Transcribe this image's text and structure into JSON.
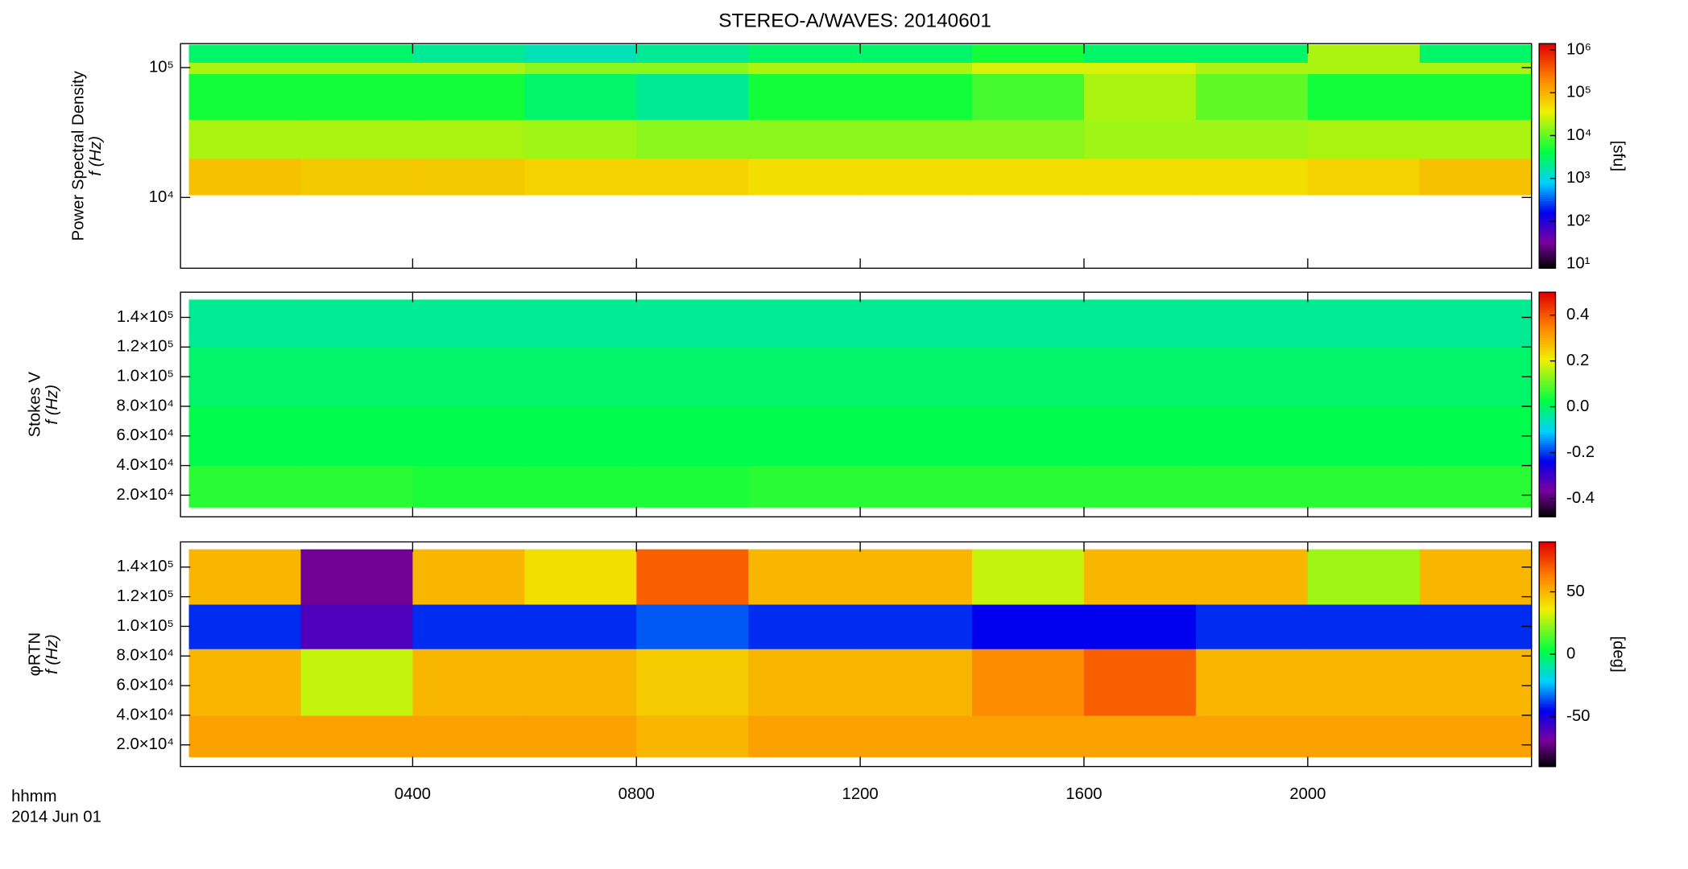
{
  "title": "STEREO-A/WAVES: 20140601",
  "time_label": "hhmm",
  "date_label": "2014 Jun 01",
  "chart_data": [
    {
      "type": "heatmap",
      "ylabel": "Power Spectral Density",
      "ylabel2": "f (Hz)",
      "colorbar_label": "[sfu]",
      "ylog": true,
      "clog": true,
      "colormap": "rainbow",
      "xlim": [
        -0.15,
        24
      ],
      "xticks": [
        4,
        8,
        12,
        16,
        20
      ],
      "ylim": [
        2850,
        153000
      ],
      "yticks": [
        {
          "value": 10000,
          "label": "10⁴"
        },
        {
          "value": 100000,
          "label": "10⁵"
        }
      ],
      "clim": [
        8,
        1400000
      ],
      "cticks": [
        {
          "value": 10,
          "label": "10¹"
        },
        {
          "value": 100,
          "label": "10²"
        },
        {
          "value": 1000,
          "label": "10³"
        },
        {
          "value": 10000,
          "label": "10⁴"
        },
        {
          "value": 100000,
          "label": "10⁵"
        },
        {
          "value": 1000000,
          "label": "10⁶"
        }
      ],
      "x_edges": [
        0,
        2,
        4,
        6,
        8,
        10,
        12,
        14,
        16,
        18,
        20,
        22,
        24
      ],
      "y_edges": [
        10500,
        20000,
        40000,
        90000,
        110000,
        150000
      ],
      "z": [
        [
          80000,
          70000,
          70000,
          60000,
          60000,
          50000,
          50000,
          50000,
          50000,
          50000,
          60000,
          80000
        ],
        [
          20000,
          20000,
          20000,
          18000,
          15000,
          15000,
          15000,
          15000,
          18000,
          18000,
          20000,
          20000
        ],
        [
          5000,
          5000,
          5000,
          3000,
          2000,
          5000,
          5000,
          8000,
          20000,
          10000,
          5000,
          5000
        ],
        [
          20000,
          20000,
          20000,
          15000,
          15000,
          20000,
          20000,
          30000,
          30000,
          20000,
          20000,
          20000
        ],
        [
          3000,
          3000,
          2000,
          1500,
          2000,
          3000,
          3000,
          5000,
          3000,
          3000,
          20000,
          3000
        ]
      ]
    },
    {
      "type": "heatmap",
      "ylabel": "Stokes V",
      "ylabel2": "f (Hz)",
      "ylog": false,
      "clog": false,
      "colormap": "rainbow",
      "xlim": [
        -0.15,
        24
      ],
      "xticks": [
        4,
        8,
        12,
        16,
        20
      ],
      "ylim": [
        5400,
        157000
      ],
      "yticks": [
        {
          "value": 20000,
          "label": "2.0×10⁴"
        },
        {
          "value": 40000,
          "label": "4.0×10⁴"
        },
        {
          "value": 60000,
          "label": "6.0×10⁴"
        },
        {
          "value": 80000,
          "label": "8.0×10⁴"
        },
        {
          "value": 100000,
          "label": "1.0×10⁵"
        },
        {
          "value": 120000,
          "label": "1.2×10⁵"
        },
        {
          "value": 140000,
          "label": "1.4×10⁵"
        }
      ],
      "clim": [
        -0.48,
        0.5
      ],
      "cticks": [
        -0.4,
        -0.2,
        {
          "value": 0,
          "label": "0.0"
        },
        0.2,
        0.4
      ],
      "x_edges": [
        0,
        2,
        4,
        6,
        8,
        10,
        12,
        14,
        16,
        18,
        20,
        22,
        24
      ],
      "y_edges": [
        12000,
        40000,
        80000,
        120000,
        152000
      ],
      "z": [
        [
          0.06,
          0.06,
          0.05,
          0.05,
          0.05,
          0.06,
          0.06,
          0.06,
          0.06,
          0.06,
          0.06,
          0.06
        ],
        [
          0.02,
          0.02,
          0.02,
          0.02,
          0.02,
          0.02,
          0.02,
          0.02,
          0.02,
          0.02,
          0.02,
          0.02
        ],
        [
          0.0,
          0.0,
          0.0,
          0.0,
          0.0,
          0.0,
          0.0,
          0.0,
          0.0,
          0.0,
          0.0,
          0.0
        ],
        [
          -0.03,
          -0.03,
          -0.03,
          -0.03,
          -0.03,
          -0.03,
          -0.03,
          -0.03,
          -0.03,
          -0.03,
          -0.03,
          -0.03
        ]
      ]
    },
    {
      "type": "heatmap",
      "ylabel": "φRTN",
      "ylabel2": "f (Hz)",
      "colorbar_label": "[deg]",
      "ylog": false,
      "clog": false,
      "colormap": "rainbow",
      "xlim": [
        -0.15,
        24
      ],
      "xticks": [
        {
          "value": 4,
          "label": "0400"
        },
        {
          "value": 8,
          "label": "0800"
        },
        {
          "value": 12,
          "label": "1200"
        },
        {
          "value": 16,
          "label": "1600"
        },
        {
          "value": 20,
          "label": "2000"
        }
      ],
      "ylim": [
        5400,
        157000
      ],
      "yticks": [
        {
          "value": 20000,
          "label": "2.0×10⁴"
        },
        {
          "value": 40000,
          "label": "4.0×10⁴"
        },
        {
          "value": 60000,
          "label": "6.0×10⁴"
        },
        {
          "value": 80000,
          "label": "8.0×10⁴"
        },
        {
          "value": 100000,
          "label": "1.0×10⁵"
        },
        {
          "value": 120000,
          "label": "1.2×10⁵"
        },
        {
          "value": 140000,
          "label": "1.4×10⁵"
        }
      ],
      "clim": [
        -90,
        90
      ],
      "cticks": [
        -50,
        0,
        50
      ],
      "x_edges": [
        0,
        2,
        4,
        6,
        8,
        10,
        12,
        14,
        16,
        18,
        20,
        22,
        24
      ],
      "y_edges": [
        12000,
        40000,
        85000,
        115000,
        152000
      ],
      "z": [
        [
          55,
          55,
          55,
          55,
          50,
          55,
          55,
          55,
          55,
          55,
          55,
          55
        ],
        [
          50,
          30,
          50,
          50,
          45,
          50,
          50,
          60,
          70,
          50,
          50,
          50
        ],
        [
          -40,
          -60,
          -40,
          -40,
          -35,
          -40,
          -40,
          -45,
          -45,
          -40,
          -40,
          -40
        ],
        [
          50,
          -70,
          50,
          40,
          70,
          50,
          50,
          30,
          50,
          50,
          25,
          50
        ]
      ]
    }
  ]
}
